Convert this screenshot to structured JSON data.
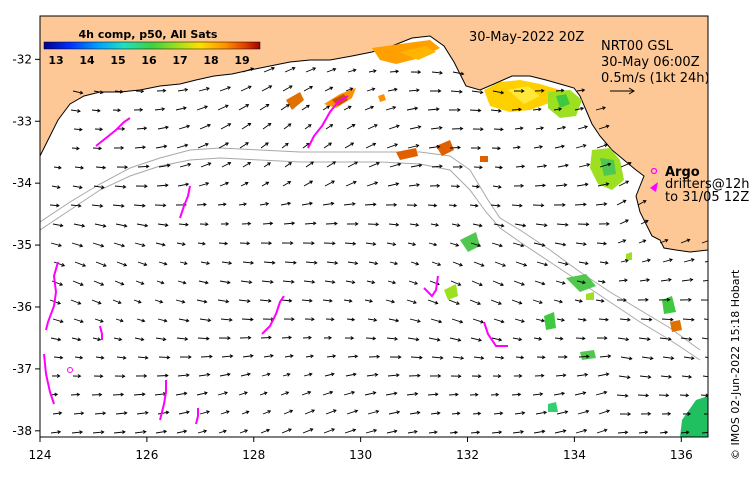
{
  "colorbar": {
    "title": "4h comp, p50, All Sats",
    "ticks": [
      "13",
      "14",
      "15",
      "16",
      "17",
      "18",
      "19"
    ],
    "colors": [
      "#00008f",
      "#0030ff",
      "#00a0ff",
      "#20e0c0",
      "#40d040",
      "#a0e020",
      "#ffe000",
      "#ff9000",
      "#e04000",
      "#a00000"
    ]
  },
  "date_label": "30-May-2022 20Z",
  "current_info": {
    "line1": "NRT00 GSL",
    "line2": "30-May 06:00Z",
    "line3": "0.5m/s (1kt 24h)"
  },
  "legend": {
    "argo": "Argo",
    "drifters": "drifters@12h",
    "drifters_range": "to 31/05 12Z"
  },
  "credit": "© IMOS 02-Jun-2022 15:18 Hobart",
  "axes": {
    "x_ticks": [
      {
        "value": 124,
        "label": "124"
      },
      {
        "value": 126,
        "label": "126"
      },
      {
        "value": 128,
        "label": "128"
      },
      {
        "value": 130,
        "label": "130"
      },
      {
        "value": 132,
        "label": "132"
      },
      {
        "value": 134,
        "label": "134"
      },
      {
        "value": 136,
        "label": "136"
      }
    ],
    "y_ticks": [
      {
        "value": -32,
        "label": "-32"
      },
      {
        "value": -33,
        "label": "-33"
      },
      {
        "value": -34,
        "label": "-34"
      },
      {
        "value": -35,
        "label": "-35"
      },
      {
        "value": -36,
        "label": "-36"
      },
      {
        "value": -37,
        "label": "-37"
      },
      {
        "value": -38,
        "label": "-38"
      }
    ],
    "x_range": [
      124,
      136.5
    ],
    "y_range": [
      -38.1,
      -31.3
    ]
  },
  "colors": {
    "land": "#fdc896",
    "sea": "#ffffff",
    "drifter": "#ff00ff",
    "bathymetry": "#a8a8a8"
  }
}
